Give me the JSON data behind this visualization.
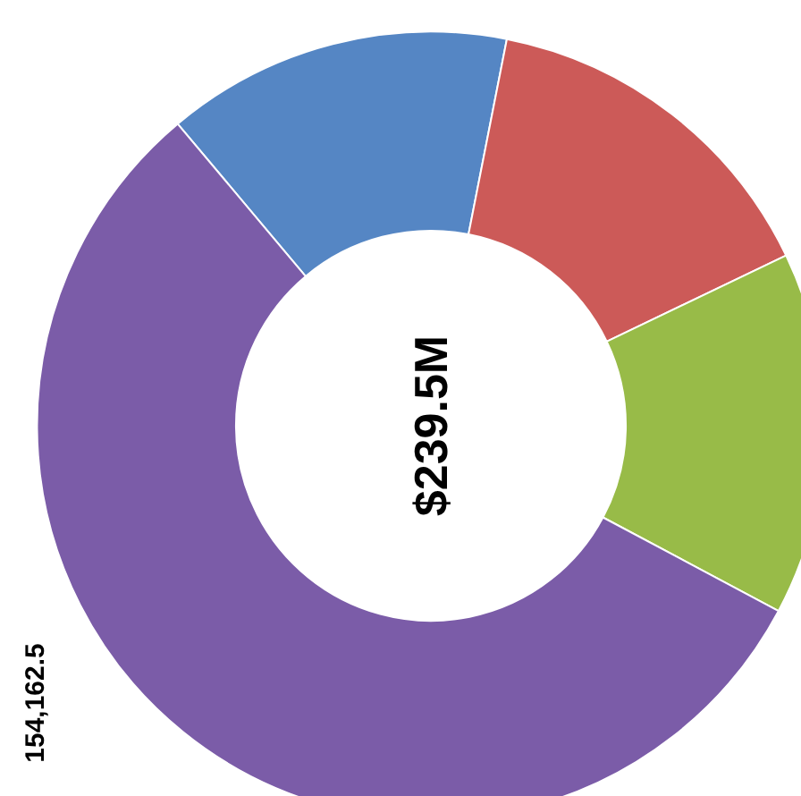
{
  "chart_data": {
    "type": "donut",
    "title": "$239.5M",
    "categories": [
      null,
      null,
      null,
      null
    ],
    "values": [
      14.2,
      14.8,
      14.9,
      56.1
    ],
    "colors": [
      "#5586c4",
      "#cc5a58",
      "#98bb48",
      "#7b5ca8"
    ],
    "annotations": [
      "154,162.5"
    ]
  }
}
